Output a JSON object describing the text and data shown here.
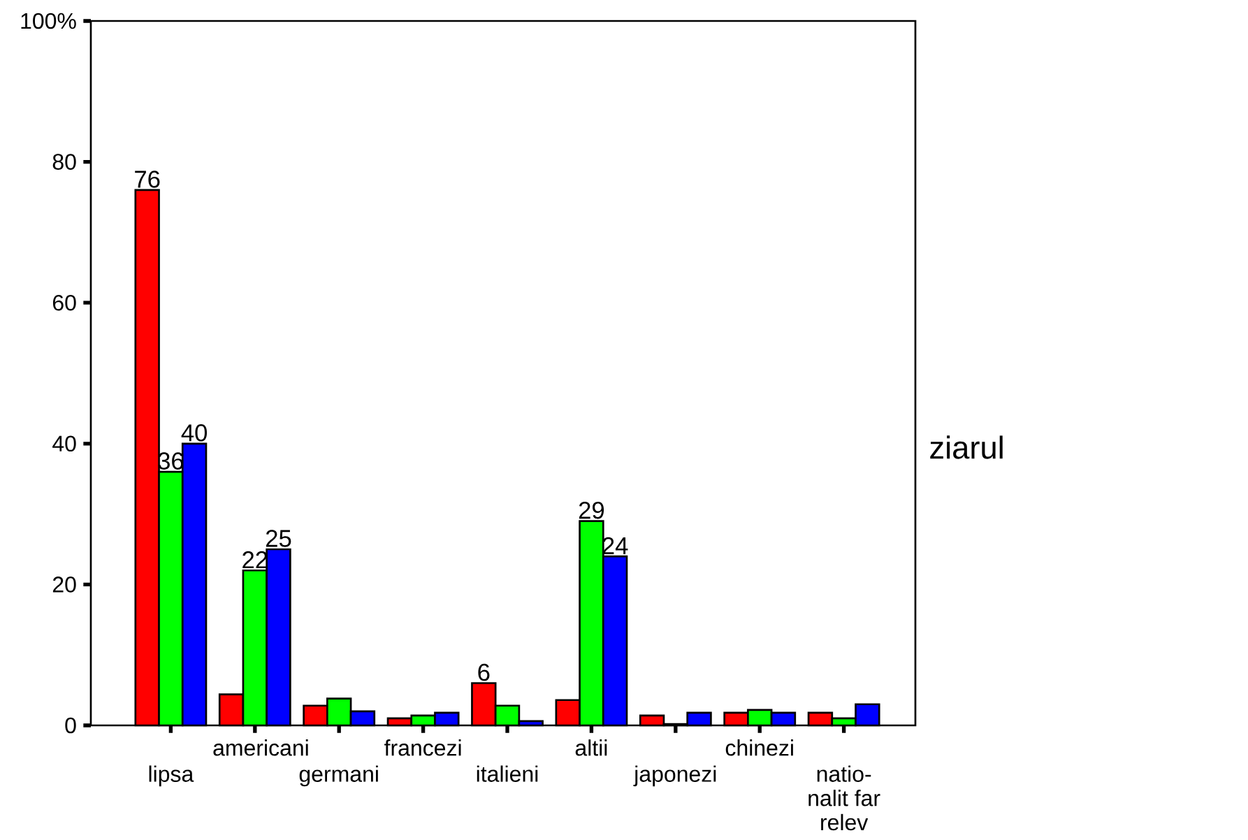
{
  "chart_data": {
    "type": "bar",
    "categories": [
      "lipsa",
      "americani",
      "germani",
      "francezi",
      "italieni",
      "altii",
      "japonezi",
      "chinezi",
      "natio-nalit far relev"
    ],
    "series": [
      {
        "color": "#ff0000",
        "values": [
          76,
          4.4,
          2.8,
          1,
          6,
          3.6,
          1.4,
          1.8,
          1.8
        ],
        "value_labels": [
          "76",
          null,
          null,
          null,
          "6",
          null,
          null,
          null,
          null
        ]
      },
      {
        "color": "#00ff00",
        "values": [
          36,
          22,
          3.8,
          1.4,
          2.8,
          29,
          0.2,
          2.2,
          1
        ],
        "value_labels": [
          "36",
          "22",
          null,
          null,
          null,
          "29",
          null,
          null,
          null
        ]
      },
      {
        "color": "#0000ff",
        "values": [
          40,
          25,
          2,
          1.8,
          0.6,
          24,
          1.8,
          1.8,
          3
        ],
        "value_labels": [
          "40",
          "25",
          null,
          null,
          null,
          "24",
          null,
          null,
          null
        ]
      }
    ],
    "legend_title": "ziarul",
    "grid": false,
    "ylim": [
      0,
      100
    ],
    "yticks": [
      0,
      20,
      40,
      60,
      80,
      {
        "value": 100,
        "label": "100%"
      }
    ]
  }
}
